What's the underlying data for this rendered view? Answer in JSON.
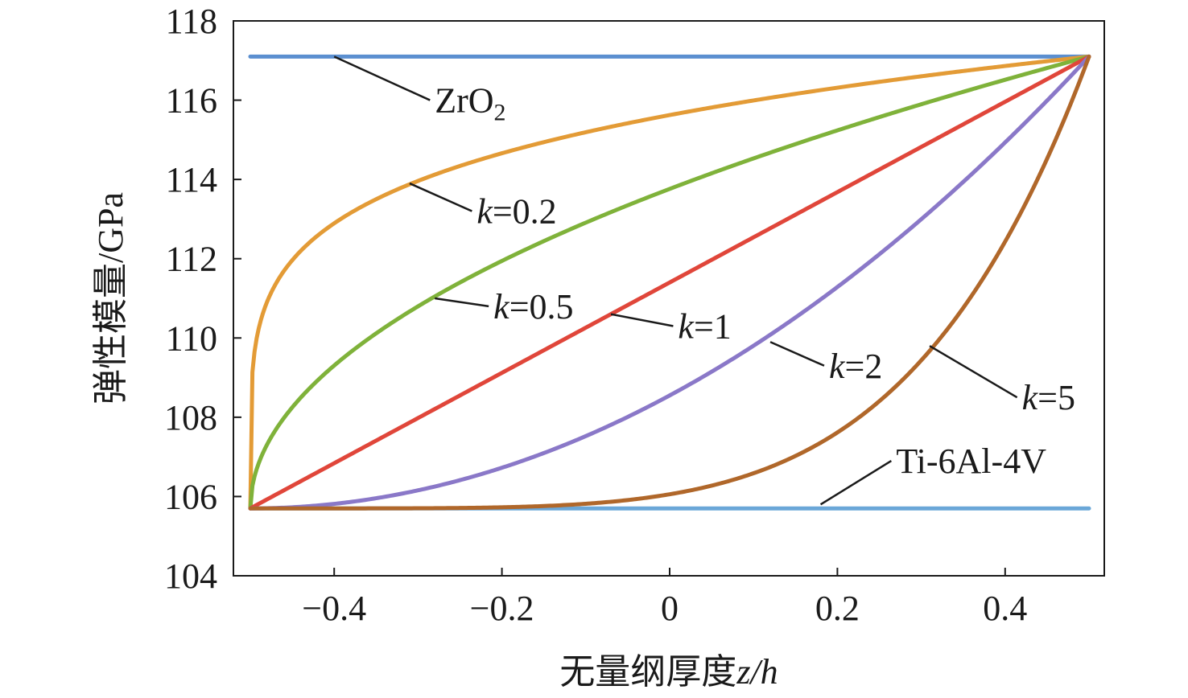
{
  "chart_data": {
    "type": "line",
    "title": "",
    "xlabel": {
      "text": "无量纲厚度",
      "var": "z/h"
    },
    "ylabel": "弹性模量/GPa",
    "xlim": [
      -0.5,
      0.5
    ],
    "ylim": [
      104,
      118
    ],
    "x_ticks": [
      -0.4,
      -0.2,
      0,
      0.2,
      0.4
    ],
    "x_tick_labels": [
      "−0.4",
      "−0.2",
      "0",
      "0.2",
      "0.4"
    ],
    "y_ticks": [
      104,
      106,
      108,
      110,
      112,
      114,
      116,
      118
    ],
    "y_tick_labels": [
      "104",
      "106",
      "108",
      "110",
      "112",
      "114",
      "116",
      "118"
    ],
    "grid": false,
    "legend": "none",
    "E_metal": 105.7,
    "E_ceramic": 117.1,
    "series": [
      {
        "name": "ZrO2",
        "color": "#5b8fd0",
        "x": [
          -0.5,
          0.5
        ],
        "y": [
          117.1,
          117.1
        ]
      },
      {
        "name": "Ti-6Al-4V",
        "color": "#6aa7d8",
        "x": [
          -0.5,
          0.5
        ],
        "y": [
          105.7,
          105.7
        ]
      },
      {
        "name": "k=0.2",
        "color": "#e39b36",
        "k": 0.2,
        "x": [
          -0.5,
          -0.499,
          -0.49,
          -0.45,
          -0.4,
          -0.3,
          -0.2,
          -0.1,
          0,
          0.1,
          0.2,
          0.3,
          0.4,
          0.5
        ],
        "y": [
          105.7,
          108.6,
          110.2,
          111.9,
          112.8,
          113.9,
          114.6,
          115.2,
          115.6,
          116.0,
          116.3,
          116.6,
          116.9,
          117.1
        ]
      },
      {
        "name": "k=0.5",
        "color": "#7fb23a",
        "k": 0.5,
        "x": [
          -0.5,
          -0.48,
          -0.45,
          -0.4,
          -0.3,
          -0.2,
          -0.1,
          0,
          0.1,
          0.2,
          0.3,
          0.4,
          0.5
        ],
        "y": [
          105.7,
          107.3,
          108.2,
          109.3,
          110.8,
          112.0,
          113.0,
          113.8,
          114.6,
          115.3,
          115.9,
          116.5,
          117.1
        ]
      },
      {
        "name": "k=1",
        "color": "#e0463a",
        "k": 1,
        "x": [
          -0.5,
          0,
          0.5
        ],
        "y": [
          105.7,
          111.4,
          117.1
        ]
      },
      {
        "name": "k=2",
        "color": "#8a78c8",
        "k": 2,
        "x": [
          -0.5,
          -0.4,
          -0.3,
          -0.2,
          -0.1,
          0,
          0.1,
          0.2,
          0.3,
          0.4,
          0.5
        ],
        "y": [
          105.7,
          105.8,
          106.2,
          106.7,
          107.5,
          108.6,
          109.8,
          111.3,
          113.0,
          115.0,
          117.1
        ]
      },
      {
        "name": "k=5",
        "color": "#b0672a",
        "k": 5,
        "x": [
          -0.5,
          -0.4,
          -0.3,
          -0.2,
          -0.1,
          0,
          0.1,
          0.2,
          0.3,
          0.4,
          0.5
        ],
        "y": [
          105.7,
          105.7,
          105.7,
          105.7,
          105.8,
          106.1,
          106.6,
          107.6,
          109.6,
          112.6,
          117.1
        ]
      }
    ],
    "annotations": [
      {
        "label": "ZrO",
        "sub": "2",
        "target": [
          -0.4,
          117.1
        ],
        "text_at": [
          -0.28,
          116.0
        ]
      },
      {
        "label": "k",
        "tail": "=0.2",
        "target": [
          -0.31,
          113.9
        ],
        "text_at": [
          -0.23,
          113.2
        ]
      },
      {
        "label": "k",
        "tail": "=0.5",
        "target": [
          -0.28,
          111.0
        ],
        "text_at": [
          -0.21,
          110.8
        ]
      },
      {
        "label": "k",
        "tail": "=1",
        "target": [
          -0.07,
          110.6
        ],
        "text_at": [
          0.01,
          110.3
        ]
      },
      {
        "label": "k",
        "tail": "=2",
        "target": [
          0.12,
          109.9
        ],
        "text_at": [
          0.19,
          109.3
        ]
      },
      {
        "label": "k",
        "tail": "=5",
        "target": [
          0.31,
          109.8
        ],
        "text_at": [
          0.42,
          108.5
        ]
      },
      {
        "label": "Ti-6Al-4V",
        "target": [
          0.18,
          105.8
        ],
        "text_at": [
          0.27,
          106.9
        ]
      }
    ]
  }
}
